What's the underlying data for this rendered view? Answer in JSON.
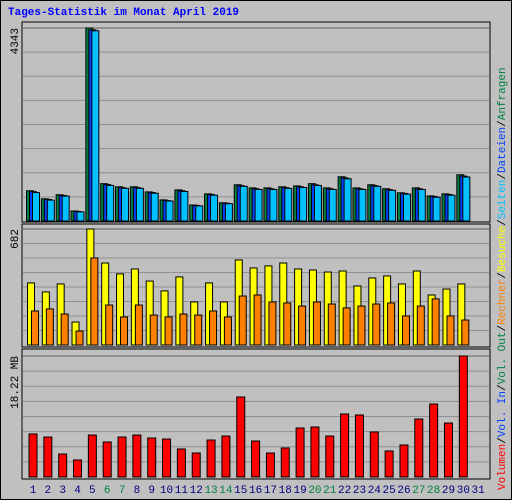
{
  "title": "Tages-Statistik im Monat April 2019",
  "separator": "/",
  "chart_data": [
    {
      "type": "bar",
      "ylim": [
        0,
        4343
      ],
      "yticks": [
        4343
      ],
      "series": [
        {
          "name": "Anfragen",
          "color": "#008040",
          "values": [
            680,
            500,
            590,
            225,
            4343,
            840,
            770,
            770,
            655,
            475,
            700,
            360,
            610,
            410,
            815,
            745,
            745,
            770,
            790,
            840,
            745,
            995,
            745,
            815,
            725,
            635,
            745,
            565,
            610,
            1040,
            null
          ]
        },
        {
          "name": "Dateien",
          "color": "#0040ff",
          "values": [
            660,
            485,
            575,
            215,
            4300,
            820,
            750,
            750,
            640,
            460,
            680,
            350,
            595,
            400,
            795,
            725,
            725,
            750,
            770,
            815,
            725,
            970,
            725,
            795,
            705,
            620,
            725,
            550,
            595,
            1010,
            null
          ]
        },
        {
          "name": "Seiten",
          "color": "#00c0ff",
          "values": [
            640,
            470,
            560,
            205,
            4280,
            800,
            735,
            735,
            625,
            450,
            665,
            340,
            580,
            390,
            780,
            710,
            710,
            735,
            755,
            800,
            710,
            950,
            710,
            780,
            690,
            605,
            710,
            535,
            580,
            990,
            null
          ]
        }
      ]
    },
    {
      "type": "bar",
      "ylim": [
        0,
        682
      ],
      "yticks": [
        682
      ],
      "series": [
        {
          "name": "Besuche",
          "color": "#ffff00",
          "values": [
            365,
            312,
            359,
            135,
            682,
            482,
            418,
            447,
            376,
            318,
            400,
            253,
            365,
            253,
            500,
            453,
            465,
            482,
            447,
            441,
            429,
            435,
            347,
            394,
            406,
            359,
            435,
            294,
            329,
            359,
            null
          ]
        },
        {
          "name": "Rechner",
          "color": "#ff8000",
          "values": [
            200,
            212,
            182,
            82,
            512,
            235,
            165,
            235,
            176,
            165,
            182,
            176,
            200,
            165,
            288,
            294,
            253,
            247,
            229,
            253,
            241,
            218,
            229,
            241,
            247,
            171,
            229,
            271,
            171,
            147,
            null
          ]
        }
      ]
    },
    {
      "type": "bar",
      "ylim": [
        0,
        18.22
      ],
      "yticks": [
        {
          "value": 18.22,
          "label": "18.22 MB"
        }
      ],
      "categories": [
        "1",
        "2",
        "3",
        "4",
        "5",
        "6",
        "7",
        "8",
        "9",
        "10",
        "11",
        "12",
        "13",
        "14",
        "15",
        "16",
        "17",
        "18",
        "19",
        "20",
        "21",
        "22",
        "23",
        "24",
        "25",
        "26",
        "27",
        "28",
        "29",
        "30",
        "31"
      ],
      "category_colors": [
        "#000080",
        "#000080",
        "#000080",
        "#000080",
        "#000080",
        "#008040",
        "#008040",
        "#000080",
        "#000080",
        "#000080",
        "#000080",
        "#000080",
        "#008040",
        "#008040",
        "#000080",
        "#000080",
        "#000080",
        "#000080",
        "#000080",
        "#008040",
        "#008040",
        "#000080",
        "#000080",
        "#000080",
        "#000080",
        "#000080",
        "#008040",
        "#008040",
        "#000080",
        "#000080",
        "#000080"
      ],
      "series": [
        {
          "name": "Volumen",
          "color": "#ff0000",
          "values": [
            6.48,
            6.02,
            3.46,
            2.56,
            6.32,
            5.27,
            6.02,
            6.32,
            5.87,
            5.72,
            4.22,
            3.61,
            5.57,
            6.17,
            12.05,
            5.42,
            3.61,
            4.37,
            7.38,
            7.53,
            6.17,
            9.49,
            9.34,
            6.78,
            3.92,
            4.82,
            8.73,
            10.99,
            8.13,
            18.22,
            null
          ]
        },
        {
          "name": "Vol. In",
          "color": "#0040ff",
          "values": [
            null,
            null,
            null,
            null,
            null,
            null,
            null,
            null,
            null,
            null,
            null,
            null,
            null,
            null,
            null,
            null,
            null,
            null,
            null,
            null,
            null,
            null,
            null,
            null,
            null,
            null,
            null,
            null,
            null,
            null,
            null
          ]
        },
        {
          "name": "Vol. Out",
          "color": "#008040",
          "values": [
            null,
            null,
            null,
            null,
            null,
            null,
            null,
            null,
            null,
            null,
            null,
            null,
            null,
            null,
            null,
            null,
            null,
            null,
            null,
            null,
            null,
            null,
            null,
            null,
            null,
            null,
            null,
            null,
            null,
            null,
            null
          ]
        }
      ]
    }
  ]
}
